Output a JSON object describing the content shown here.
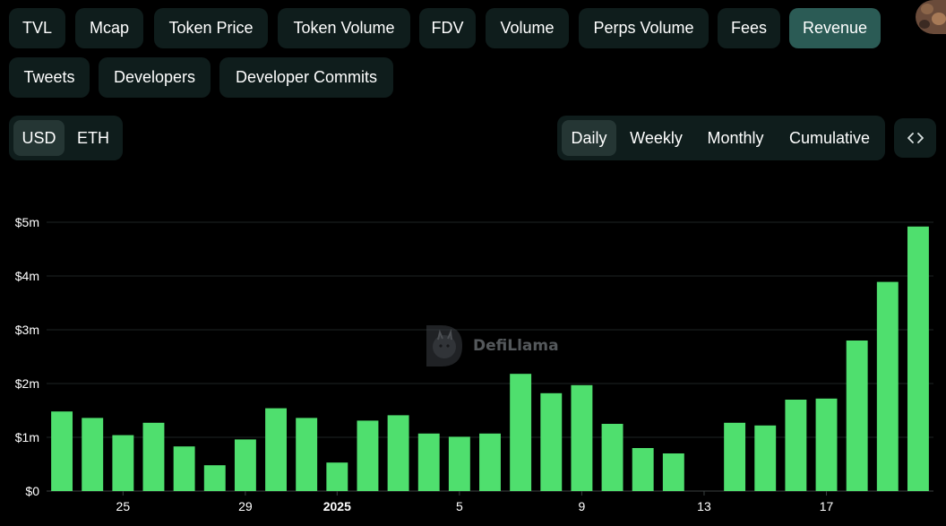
{
  "metric_tabs": [
    {
      "label": "TVL",
      "active": false
    },
    {
      "label": "Mcap",
      "active": false
    },
    {
      "label": "Token Price",
      "active": false
    },
    {
      "label": "Token Volume",
      "active": false
    },
    {
      "label": "FDV",
      "active": false
    },
    {
      "label": "Volume",
      "active": false
    },
    {
      "label": "Perps Volume",
      "active": false
    },
    {
      "label": "Fees",
      "active": false
    },
    {
      "label": "Revenue",
      "active": true
    },
    {
      "label": "Tweets",
      "active": false
    },
    {
      "label": "Developers",
      "active": false
    },
    {
      "label": "Developer Commits",
      "active": false
    }
  ],
  "currency_toggle": [
    {
      "label": "USD",
      "active": true
    },
    {
      "label": "ETH",
      "active": false
    }
  ],
  "period_toggle": [
    {
      "label": "Daily",
      "active": true
    },
    {
      "label": "Weekly",
      "active": false
    },
    {
      "label": "Monthly",
      "active": false
    },
    {
      "label": "Cumulative",
      "active": false
    }
  ],
  "embed_icon": "code-brackets-icon",
  "watermark": {
    "text": "DefiLlama",
    "icon": "llama-logo-icon"
  },
  "colors": {
    "bar": "#4fdf6e",
    "pill_bg": "#0f1d1c",
    "pill_active_bg": "#2b5b55",
    "grid": "#1e2424",
    "axis_text": "#ffffff"
  },
  "chart_data": {
    "type": "bar",
    "title": "",
    "xlabel": "",
    "ylabel": "",
    "series": [
      {
        "values": [
          1480000,
          1360000,
          1040000,
          1270000,
          830000,
          480000,
          960000,
          1540000,
          1360000,
          530000,
          1310000,
          1410000,
          1070000,
          1010000,
          1070000,
          2180000,
          1820000,
          1970000,
          1250000,
          800000,
          700000,
          0,
          1270000,
          1220000,
          1700000,
          1720000,
          2800000,
          3890000,
          4920000
        ]
      }
    ],
    "categories": [
      "2024-12-23",
      "2024-12-24",
      "2024-12-25",
      "2024-12-26",
      "2024-12-27",
      "2024-12-28",
      "2024-12-29",
      "2024-12-30",
      "2024-12-31",
      "2025-01-01",
      "2025-01-02",
      "2025-01-03",
      "2025-01-04",
      "2025-01-05",
      "2025-01-06",
      "2025-01-07",
      "2025-01-08",
      "2025-01-09",
      "2025-01-10",
      "2025-01-11",
      "2025-01-12",
      "2025-01-13",
      "2025-01-14",
      "2025-01-15",
      "2025-01-16",
      "2025-01-17",
      "2025-01-18",
      "2025-01-19",
      "2025-01-20"
    ],
    "x_ticks": [
      {
        "category": "2024-12-25",
        "label": "25",
        "bold": false
      },
      {
        "category": "2024-12-29",
        "label": "29",
        "bold": false
      },
      {
        "category": "2025-01-01",
        "label": "2025",
        "bold": true
      },
      {
        "category": "2025-01-05",
        "label": "5",
        "bold": false
      },
      {
        "category": "2025-01-09",
        "label": "9",
        "bold": false
      },
      {
        "category": "2025-01-13",
        "label": "13",
        "bold": false
      },
      {
        "category": "2025-01-17",
        "label": "17",
        "bold": false
      }
    ],
    "y_ticks": [
      {
        "value": 0,
        "label": "$0"
      },
      {
        "value": 1000000,
        "label": "$1m"
      },
      {
        "value": 2000000,
        "label": "$2m"
      },
      {
        "value": 3000000,
        "label": "$3m"
      },
      {
        "value": 4000000,
        "label": "$4m"
      },
      {
        "value": 5000000,
        "label": "$5m"
      }
    ],
    "ylim": [
      0,
      5000000
    ],
    "grid": true,
    "legend": false
  }
}
